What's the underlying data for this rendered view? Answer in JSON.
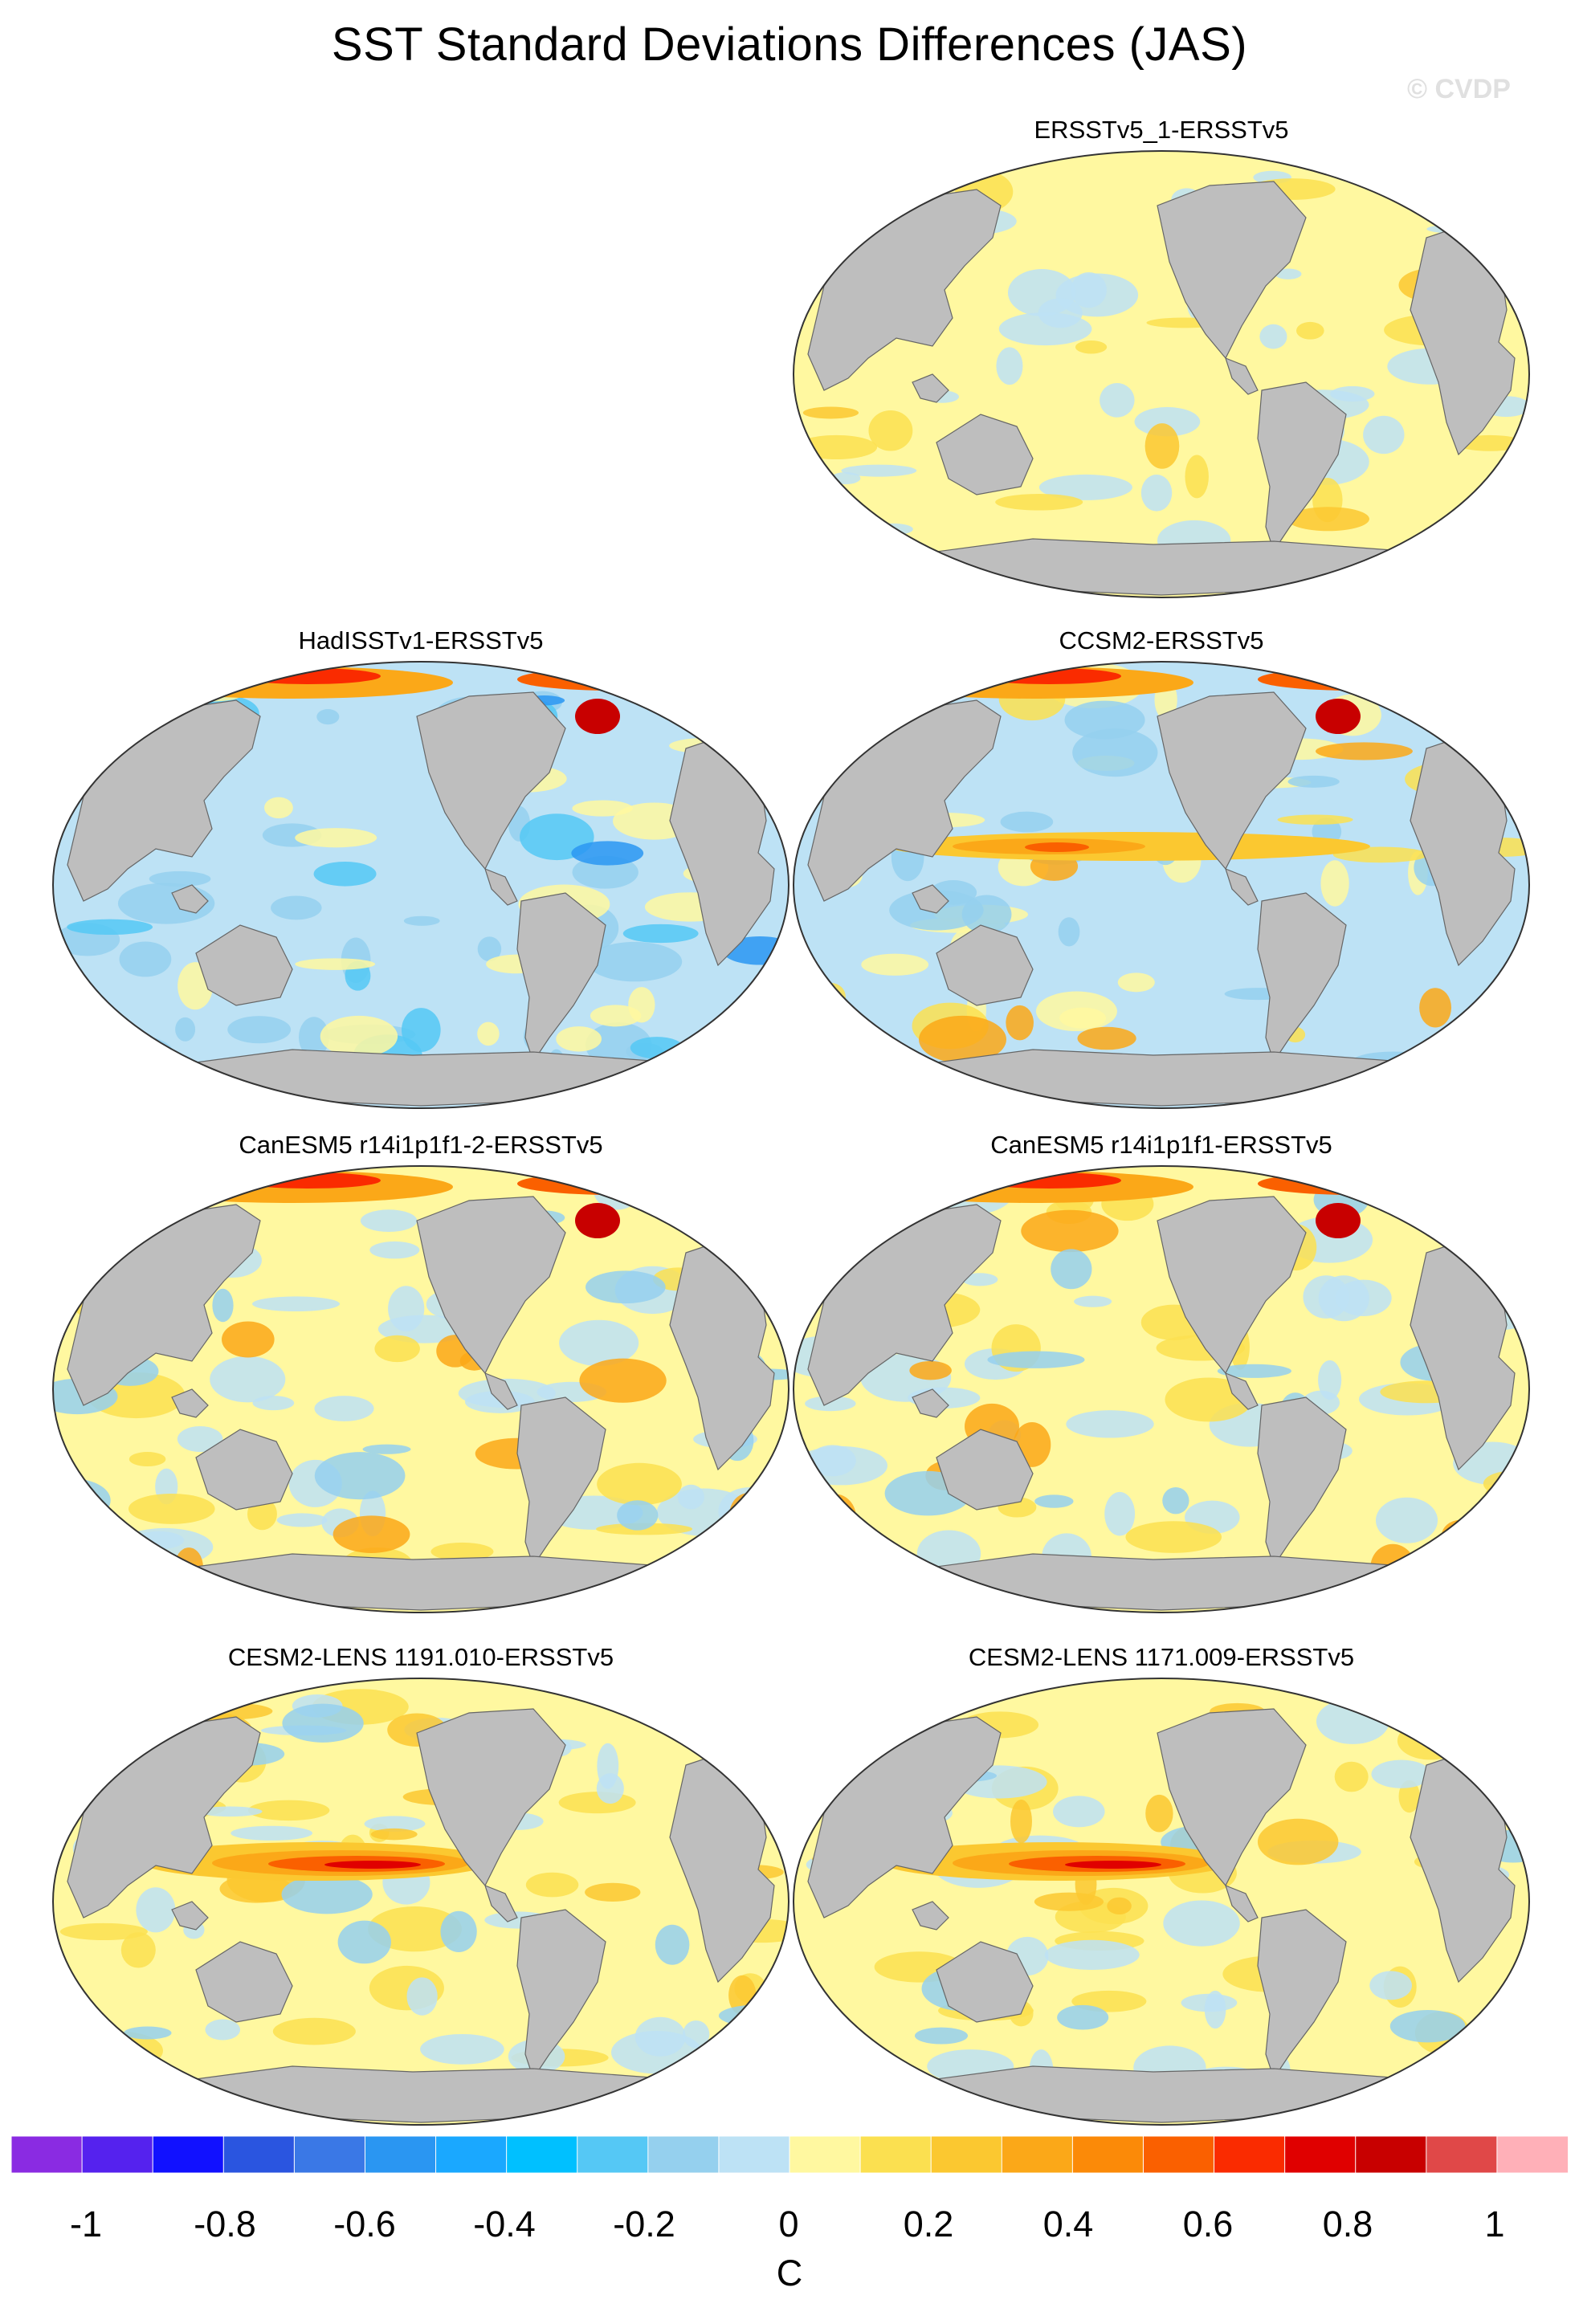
{
  "figure": {
    "title": "SST Standard Deviations Differences (JAS)",
    "watermark": "© CVDP"
  },
  "panels": [
    {
      "title": "ERSSTv5_1-ERSSTv5",
      "style": "weak"
    },
    {
      "title": "HadISSTv1-ERSSTv5",
      "style": "cool"
    },
    {
      "title": "CCSM2-ERSSTv5",
      "style": "mixed"
    },
    {
      "title": "CanESM5 r14i1p1f1-2-ERSSTv5",
      "style": "warm-north"
    },
    {
      "title": "CanESM5 r14i1p1f1-ERSSTv5",
      "style": "warm-north"
    },
    {
      "title": "CESM2-LENS 1191.010-ERSSTv5",
      "style": "warm-equator"
    },
    {
      "title": "CESM2-LENS 1171.009-ERSSTv5",
      "style": "warm-equator"
    }
  ],
  "colorbar": {
    "units": "C",
    "colors": [
      "#8a2be2",
      "#5522ee",
      "#1111ff",
      "#2a55e0",
      "#3a78e6",
      "#2a96f2",
      "#1aa8ff",
      "#00c0ff",
      "#55c8f5",
      "#95d0ee",
      "#bde2f5",
      "#fff8a0",
      "#fbe050",
      "#fbc830",
      "#fba818",
      "#fb8a08",
      "#fa6000",
      "#fa2b00",
      "#e00000",
      "#c80000",
      "#e04848",
      "#ffb0b8"
    ],
    "tick_labels": [
      "-1",
      "-0.8",
      "-0.6",
      "-0.4",
      "-0.2",
      "0",
      "0.2",
      "0.4",
      "0.6",
      "0.8",
      "1"
    ]
  }
}
